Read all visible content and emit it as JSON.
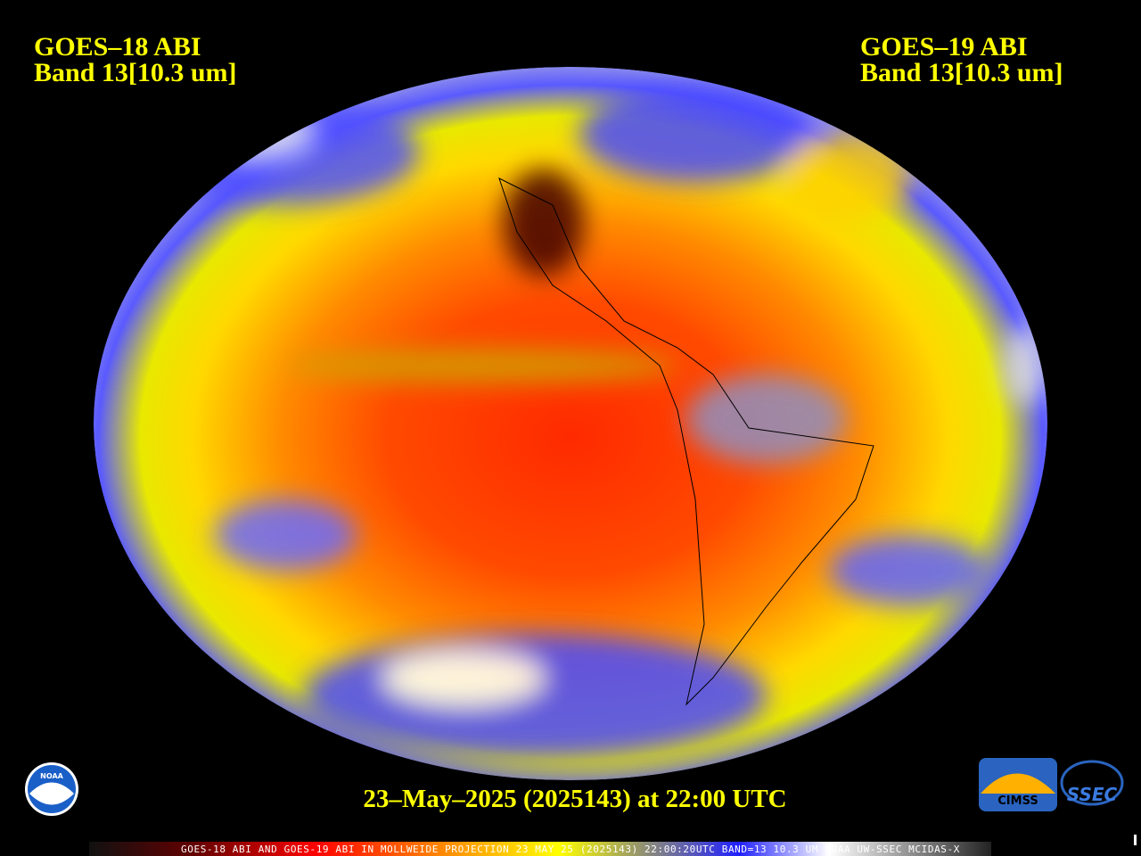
{
  "left_label": {
    "line1": "GOES–18 ABI",
    "line2": "Band 13[10.3 um]"
  },
  "right_label": {
    "line1": "GOES–19 ABI",
    "line2": "Band 13[10.3 um]"
  },
  "timestamp": "23–May–2025 (2025143) at 22:00 UTC",
  "footer": "GOES-18 ABI AND GOES-19 ABI IN MOLLWEIDE PROJECTION 23 MAY 25 (2025143) 22:00:20UTC BAND=13 10.3 UM NOAA UW-SSEC MCIDAS-X",
  "logos": {
    "noaa": "NOAA",
    "cimss": "CIMSS",
    "ssec": "SSEC"
  }
}
